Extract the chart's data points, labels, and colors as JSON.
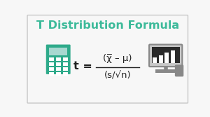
{
  "title": "T Distribution Formula",
  "title_color": "#3dba9a",
  "title_fontsize": 11.5,
  "bg_color": "#f7f7f7",
  "border_color": "#c8c8c8",
  "formula_numerator": "(χ̅ – μ)",
  "formula_denominator": "(s/√n)",
  "formula_color": "#222222",
  "formula_fontsize": 9.5,
  "calc_color": "#2eaa8a",
  "calc_screen_color": "#a8d8d0",
  "mon_color": "#888888",
  "mon_dark": "#333333",
  "mon_light": "#aaaaaa"
}
